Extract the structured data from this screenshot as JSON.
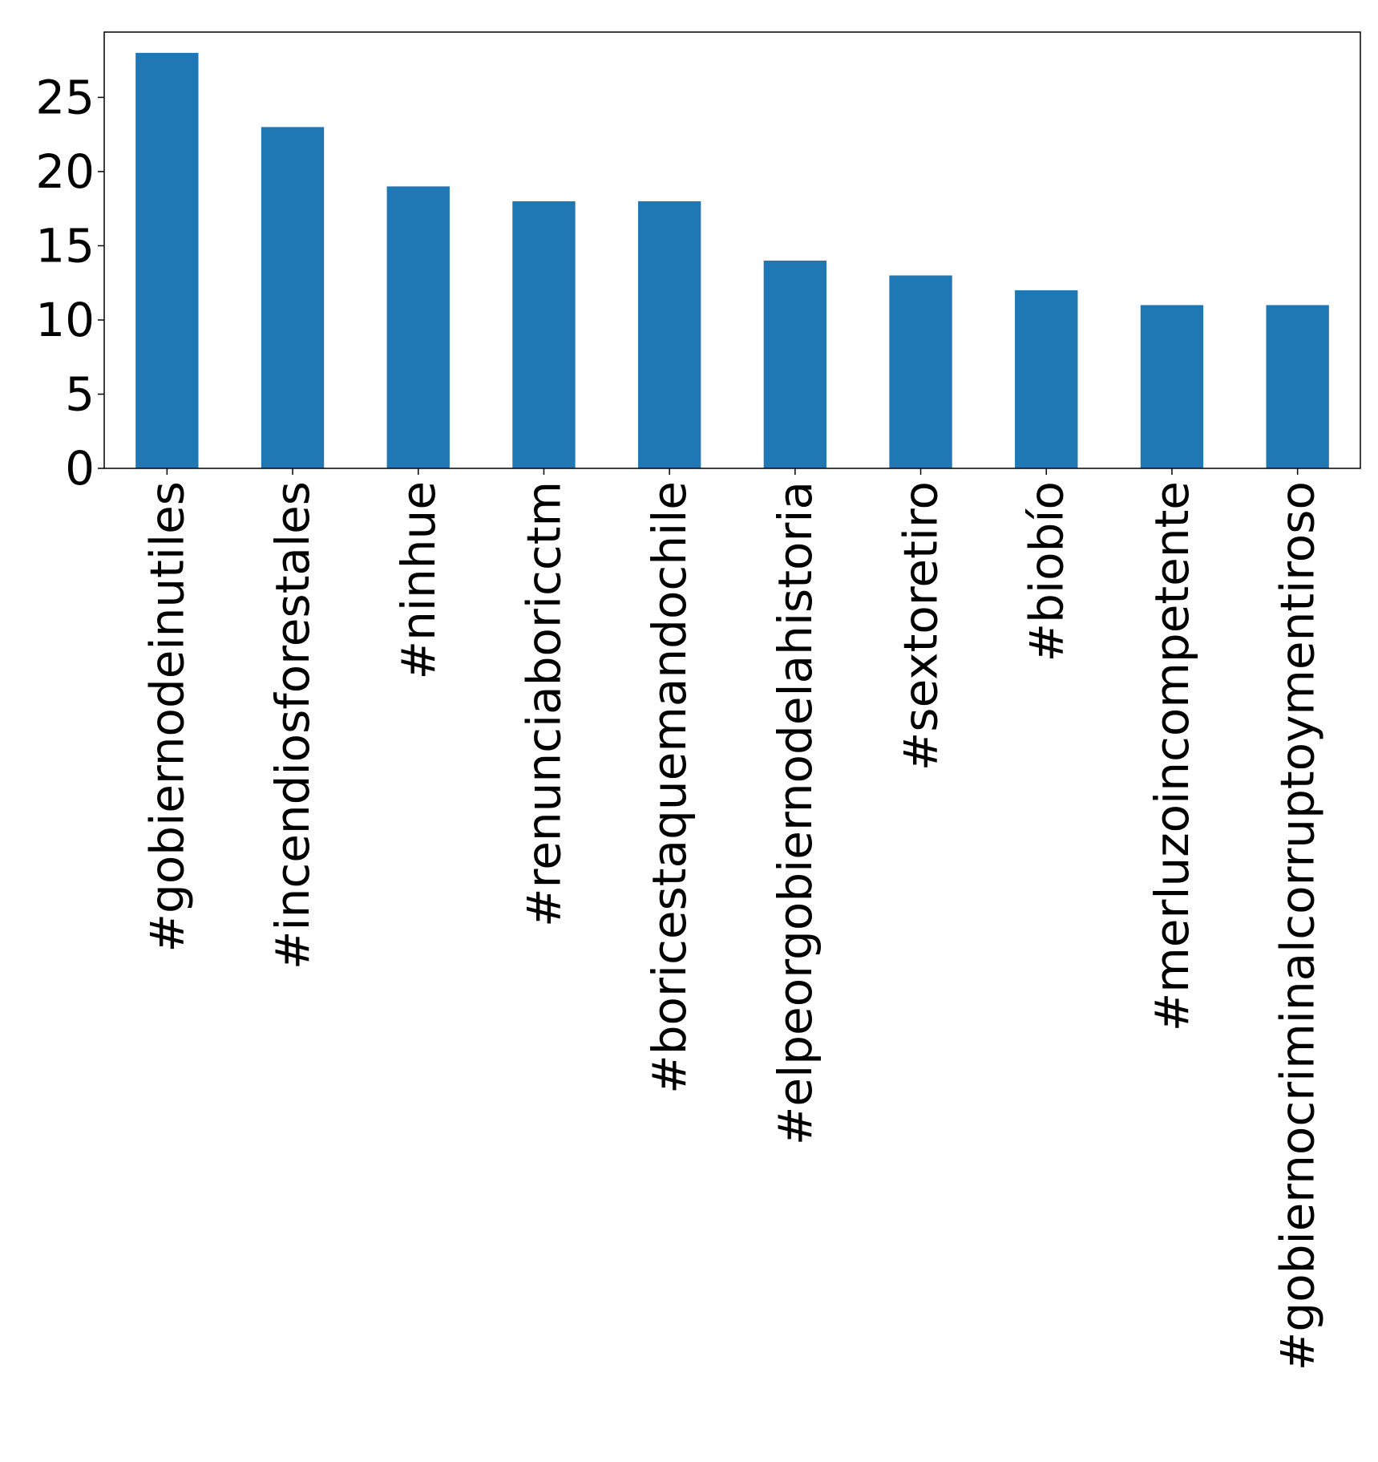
{
  "chart_data": {
    "type": "bar",
    "title": "",
    "xlabel": "",
    "ylabel": "",
    "categories": [
      "#gobiernodeinutiles",
      "#incendiosforestales",
      "#ninhue",
      "#renunciaboricctm",
      "#boricestaquemandochile",
      "#elpeorgobiernodelahistoria",
      "#sextoretiro",
      "#biobío",
      "#merluzoincompetente",
      "#gobiernocriminalcorruptoymentiroso"
    ],
    "values": [
      28,
      23,
      19,
      18,
      18,
      14,
      13,
      12,
      11,
      11
    ],
    "ylim": [
      0,
      29.4
    ],
    "yticks": [
      0,
      5,
      10,
      15,
      20,
      25
    ],
    "grid": false,
    "legend": "none",
    "bar_color": "#1f77b4"
  }
}
